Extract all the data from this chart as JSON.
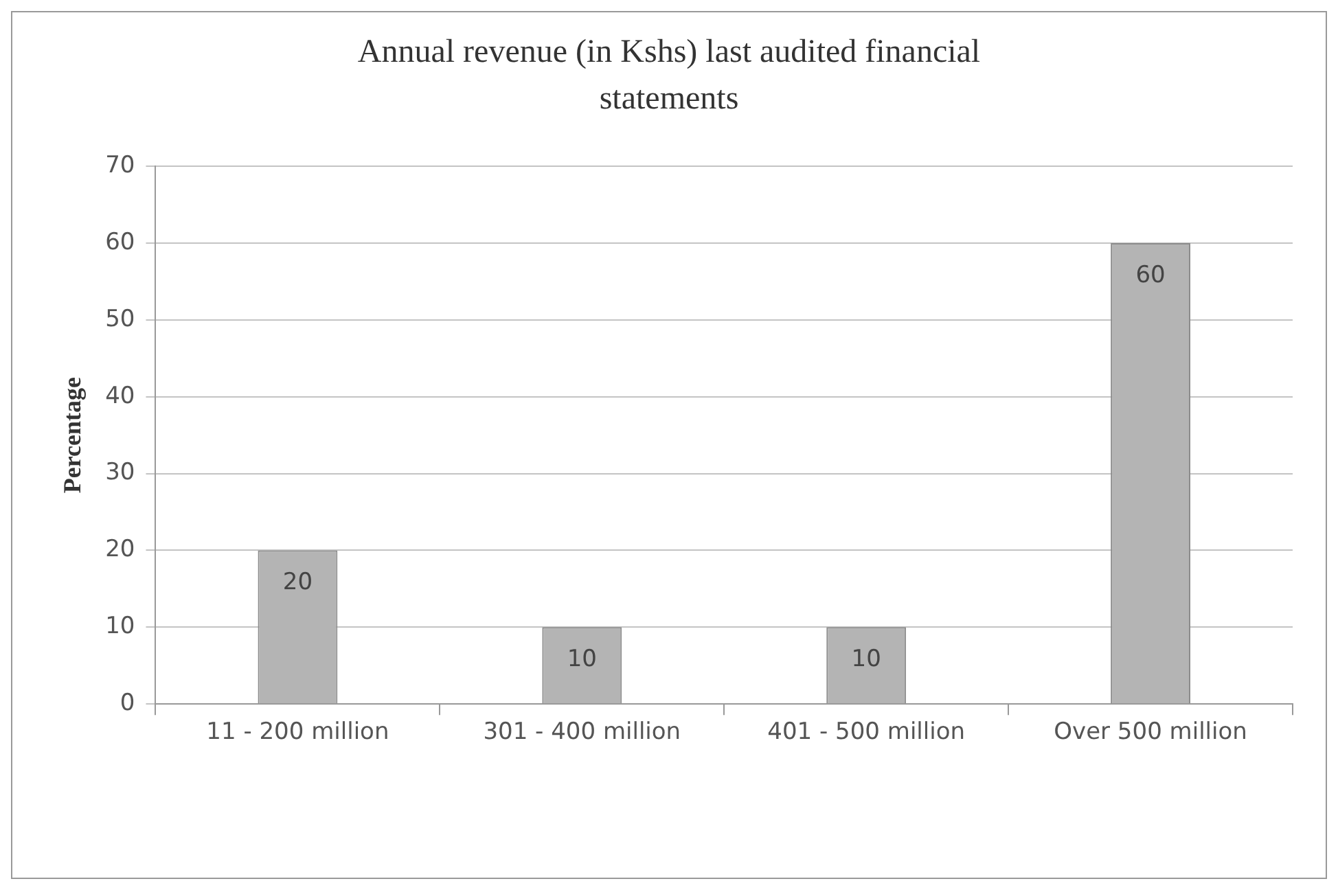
{
  "chart_data": {
    "type": "bar",
    "title": "Annual revenue (in Kshs)  last audited financial statements",
    "ylabel": "Percentage",
    "categories": [
      "11 - 200 million",
      "301 - 400 million",
      "401 - 500 million",
      "Over 500 million"
    ],
    "values": [
      20,
      10,
      10,
      60
    ],
    "color": "#b4b4b4",
    "ylim": [
      0,
      70
    ],
    "yticks": [
      0,
      10,
      20,
      30,
      40,
      50,
      60,
      70
    ],
    "grid": "y",
    "legend": false,
    "data_labels": true
  }
}
